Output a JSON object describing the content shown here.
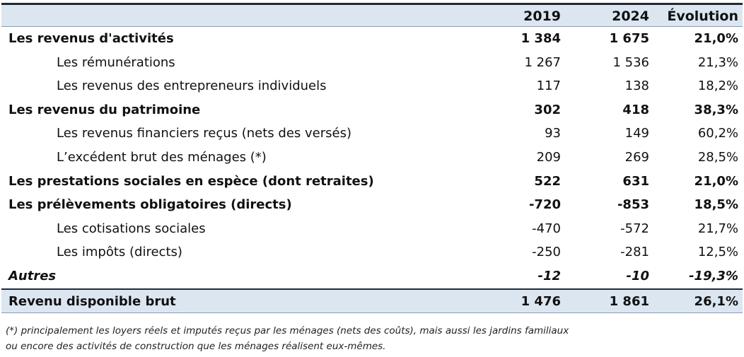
{
  "table": {
    "header": [
      "2019",
      "2024",
      "Évolution"
    ],
    "rows": [
      [
        "Les revenus d'activités",
        "1 384",
        "1 675",
        "21,0%"
      ],
      [
        "Les rémunérations",
        "1 267",
        "1 536",
        "21,3%"
      ],
      [
        "Les revenus des entrepreneurs individuels",
        "117",
        "138",
        "18,2%"
      ],
      [
        "Les revenus du patrimoine",
        "302",
        "418",
        "38,3%"
      ],
      [
        "Les revenus financiers reçus (nets des versés)",
        "93",
        "149",
        "60,2%"
      ],
      [
        "L’excédent brut des ménages (*)",
        "209",
        "269",
        "28,5%"
      ],
      [
        "Les prestations sociales en espèce (dont retraites)",
        "522",
        "631",
        "21,0%"
      ],
      [
        "Les prélèvements obligatoires (directs)",
        "-720",
        "-853",
        "18,5%"
      ],
      [
        "Les cotisations sociales",
        "-470",
        "-572",
        "21,7%"
      ],
      [
        "Les impôts (directs)",
        "-250",
        "-281",
        "12,5%"
      ],
      [
        "Autres",
        "-12",
        "-10",
        "-19,3%"
      ],
      [
        "Revenu disponible brut",
        "1 476",
        "1 861",
        "26,1%"
      ]
    ]
  },
  "footnote": [
    "(*) principalement les loyers réels et imputés reçus par les ménages (nets des coûts), mais aussi les jardins familiaux",
    "ou encore des activités de construction que les ménages réalisent eux-mêmes."
  ]
}
